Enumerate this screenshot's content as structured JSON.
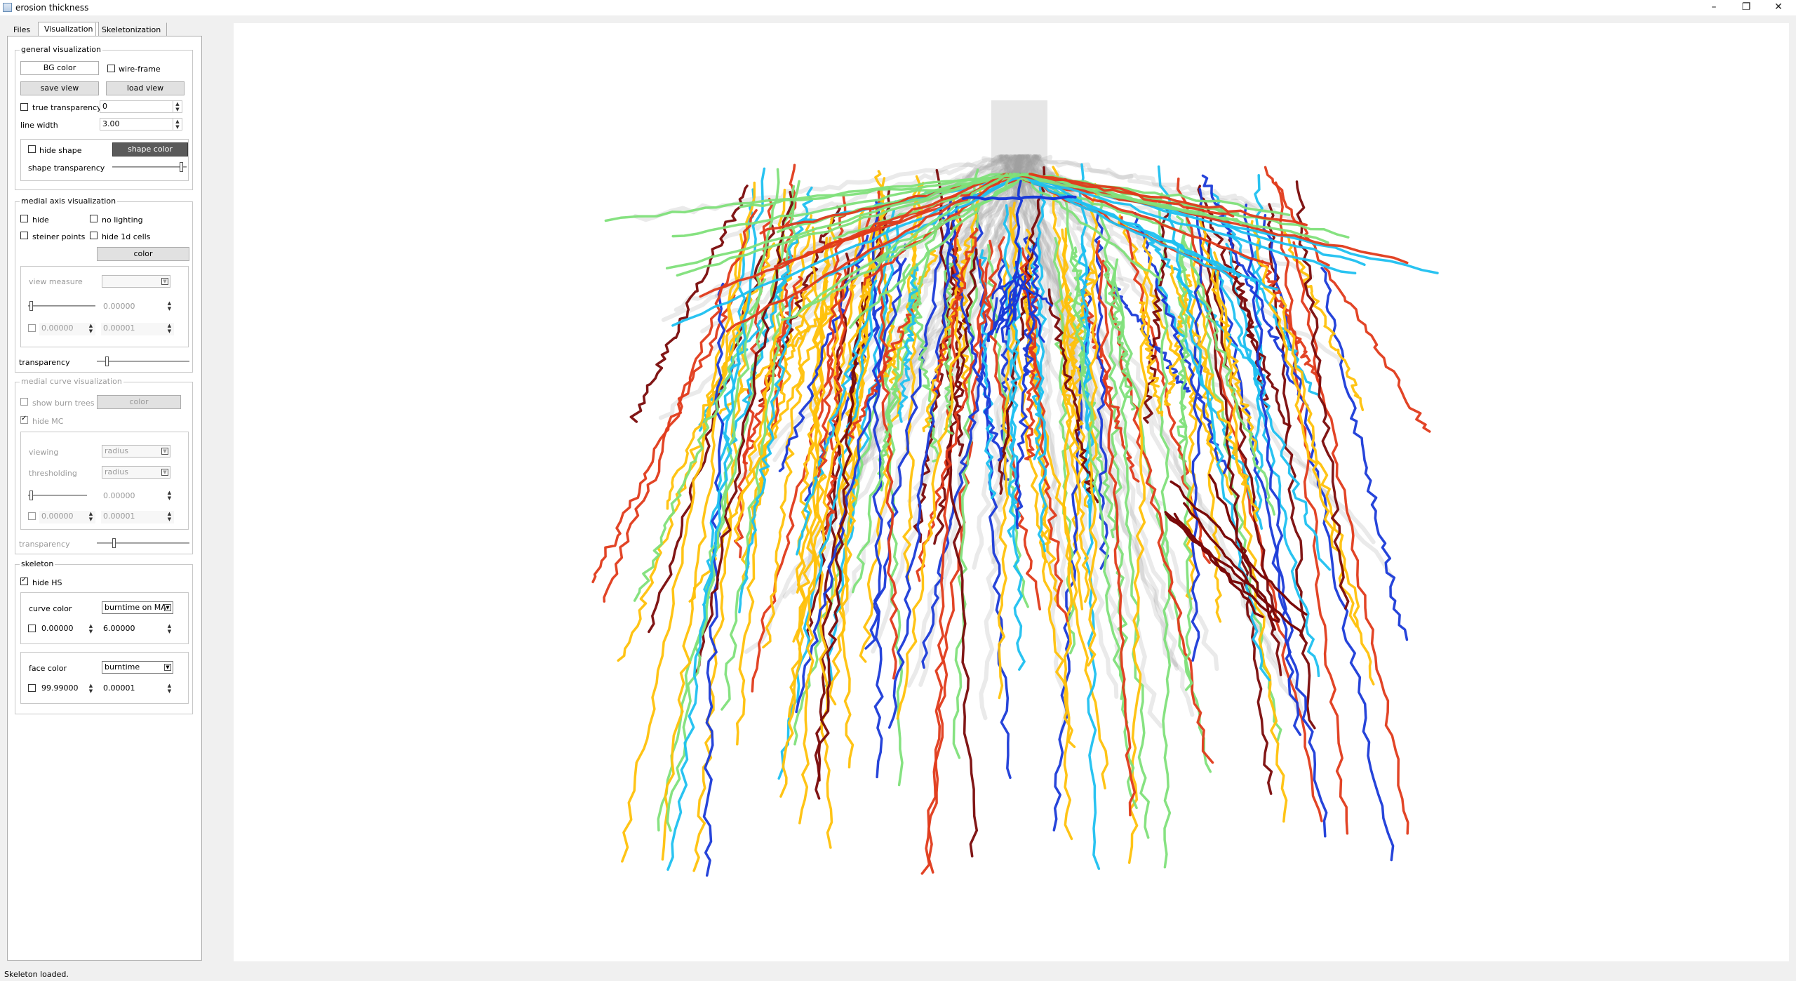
{
  "window": {
    "title": "erosion thickness",
    "minimize": "–",
    "restore": "❐",
    "close": "✕"
  },
  "tabs": [
    {
      "label": "Files"
    },
    {
      "label": "Visualization"
    },
    {
      "label": "Skeletonization"
    }
  ],
  "general": {
    "title": "general visualization",
    "bg_color": "BG color",
    "wire_frame": "wire-frame",
    "save_view": "save view",
    "load_view": "load view",
    "true_transparency": "true transparency",
    "true_transparency_value": "0",
    "line_width_label": "line width",
    "line_width_value": "3.00",
    "hide_shape": "hide shape",
    "shape_color": "shape color",
    "shape_transparency": "shape transparency"
  },
  "medial_axis": {
    "title": "medial axis visualization",
    "hide": "hide",
    "no_lighting": "no lighting",
    "steiner_points": "steiner points",
    "hide_1d_cells": "hide 1d cells",
    "color": "color",
    "view_measure": "view measure",
    "slider_value": "0.00000",
    "min_value": "0.00000",
    "max_value": "0.00001",
    "transparency": "transparency"
  },
  "medial_curve": {
    "title": "medial curve visualization",
    "show_burn_trees": "show burn trees",
    "color": "color",
    "hide_mc": "hide MC",
    "viewing": "viewing",
    "viewing_value": "radius",
    "thresholding": "thresholding",
    "thresholding_value": "radius",
    "slider_value": "0.00000",
    "min_value": "0.00000",
    "max_value": "0.00001",
    "transparency": "transparency"
  },
  "skeleton": {
    "title": "skeleton",
    "hide_hs": "hide HS",
    "curve_color": "curve color",
    "curve_color_value": "burntime on MA",
    "curve_min": "0.00000",
    "curve_max": "6.00000",
    "face_color": "face color",
    "face_color_value": "burntime",
    "face_min": "99.99000",
    "face_max": "0.00001"
  },
  "status": "Skeleton loaded.",
  "colors": {
    "root_palette": [
      "#ffc10a",
      "#7fe07a",
      "#1ec0f0",
      "#e03a1a",
      "#1a3ad8",
      "#7a0a0a",
      "#f3c21d",
      "#9e9e9e"
    ]
  }
}
